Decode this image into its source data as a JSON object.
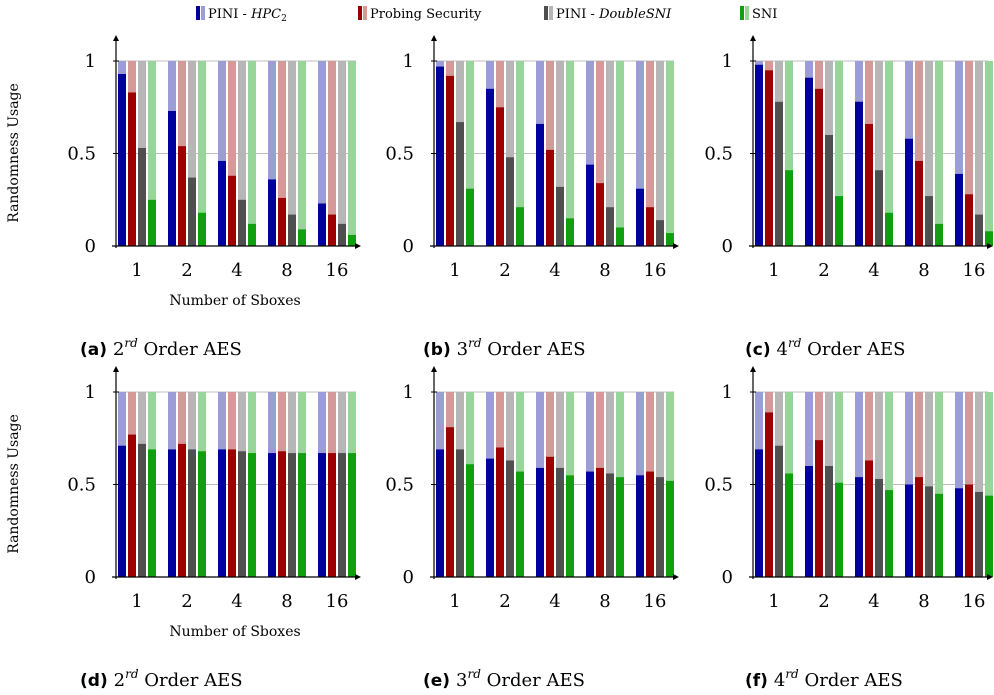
{
  "legend": {
    "items": [
      {
        "label_prefix": "PINI - ",
        "label_italic": "HPC",
        "label_sub": "2",
        "color_dark": "#00009f",
        "color_light": "#9c9cd6"
      },
      {
        "label_prefix": "Probing Security",
        "label_italic": "",
        "label_sub": "",
        "color_dark": "#9c0000",
        "color_light": "#d49a9a"
      },
      {
        "label_prefix": "PINI - ",
        "label_italic": "DoubleSNI",
        "label_sub": "",
        "color_dark": "#4f4f4f",
        "color_light": "#b6b6b6"
      },
      {
        "label_prefix": "SNI",
        "label_italic": "",
        "label_sub": "",
        "color_dark": "#0f9f0f",
        "color_light": "#98d598"
      }
    ]
  },
  "chart_data": [
    {
      "type": "bar",
      "caption": {
        "letter": "(a)",
        "order": "2",
        "sup": "rd",
        "text": "Order AES"
      },
      "ylabel": "Randomness Usage",
      "xlabel": "Number of Sboxes",
      "categories": [
        "1",
        "2",
        "4",
        "8",
        "16"
      ],
      "yticks": [
        "0",
        "0.5",
        "1"
      ],
      "ylim": [
        0,
        1
      ],
      "series": [
        {
          "values": [
            0.93,
            0.73,
            0.46,
            0.36,
            0.23
          ]
        },
        {
          "values": [
            0.83,
            0.54,
            0.38,
            0.26,
            0.17
          ]
        },
        {
          "values": [
            0.53,
            0.37,
            0.25,
            0.17,
            0.12
          ]
        },
        {
          "values": [
            0.25,
            0.18,
            0.12,
            0.09,
            0.06
          ]
        }
      ]
    },
    {
      "type": "bar",
      "caption": {
        "letter": "(b)",
        "order": "3",
        "sup": "rd",
        "text": "Order AES"
      },
      "ylabel": "",
      "xlabel": "",
      "categories": [
        "1",
        "2",
        "4",
        "8",
        "16"
      ],
      "yticks": [
        "0",
        "0.5",
        "1"
      ],
      "ylim": [
        0,
        1
      ],
      "series": [
        {
          "values": [
            0.97,
            0.85,
            0.66,
            0.44,
            0.31
          ]
        },
        {
          "values": [
            0.92,
            0.75,
            0.52,
            0.34,
            0.21
          ]
        },
        {
          "values": [
            0.67,
            0.48,
            0.32,
            0.21,
            0.14
          ]
        },
        {
          "values": [
            0.31,
            0.21,
            0.15,
            0.1,
            0.07
          ]
        }
      ]
    },
    {
      "type": "bar",
      "caption": {
        "letter": "(c)",
        "order": "4",
        "sup": "rd",
        "text": "Order AES"
      },
      "ylabel": "",
      "xlabel": "",
      "categories": [
        "1",
        "2",
        "4",
        "8",
        "16"
      ],
      "yticks": [
        "0",
        "0.5",
        "1"
      ],
      "ylim": [
        0,
        1
      ],
      "series": [
        {
          "values": [
            0.98,
            0.91,
            0.78,
            0.58,
            0.39
          ]
        },
        {
          "values": [
            0.95,
            0.85,
            0.66,
            0.46,
            0.28
          ]
        },
        {
          "values": [
            0.78,
            0.6,
            0.41,
            0.27,
            0.17
          ]
        },
        {
          "values": [
            0.41,
            0.27,
            0.18,
            0.12,
            0.08
          ]
        }
      ]
    },
    {
      "type": "bar",
      "caption": {
        "letter": "(d)",
        "order": "2",
        "sup": "rd",
        "text": "Order AES"
      },
      "ylabel": "Randomness Usage",
      "xlabel": "Number of Sboxes",
      "categories": [
        "1",
        "2",
        "4",
        "8",
        "16"
      ],
      "yticks": [
        "0",
        "0.5",
        "1"
      ],
      "ylim": [
        0,
        1
      ],
      "series": [
        {
          "values": [
            0.71,
            0.69,
            0.69,
            0.67,
            0.67
          ]
        },
        {
          "values": [
            0.77,
            0.72,
            0.69,
            0.68,
            0.67
          ]
        },
        {
          "values": [
            0.72,
            0.69,
            0.68,
            0.67,
            0.67
          ]
        },
        {
          "values": [
            0.69,
            0.68,
            0.67,
            0.67,
            0.67
          ]
        }
      ]
    },
    {
      "type": "bar",
      "caption": {
        "letter": "(e)",
        "order": "3",
        "sup": "rd",
        "text": "Order AES"
      },
      "ylabel": "",
      "xlabel": "",
      "categories": [
        "1",
        "2",
        "4",
        "8",
        "16"
      ],
      "yticks": [
        "0",
        "0.5",
        "1"
      ],
      "ylim": [
        0,
        1
      ],
      "series": [
        {
          "values": [
            0.69,
            0.64,
            0.59,
            0.57,
            0.55
          ]
        },
        {
          "values": [
            0.81,
            0.7,
            0.65,
            0.59,
            0.57
          ]
        },
        {
          "values": [
            0.69,
            0.63,
            0.59,
            0.56,
            0.54
          ]
        },
        {
          "values": [
            0.61,
            0.57,
            0.55,
            0.54,
            0.52
          ]
        }
      ]
    },
    {
      "type": "bar",
      "caption": {
        "letter": "(f)",
        "order": "4",
        "sup": "rd",
        "text": "Order AES"
      },
      "ylabel": "",
      "xlabel": "",
      "categories": [
        "1",
        "2",
        "4",
        "8",
        "16"
      ],
      "yticks": [
        "0",
        "0.5",
        "1"
      ],
      "ylim": [
        0,
        1
      ],
      "series": [
        {
          "values": [
            0.69,
            0.6,
            0.54,
            0.5,
            0.48
          ]
        },
        {
          "values": [
            0.89,
            0.74,
            0.63,
            0.54,
            0.5
          ]
        },
        {
          "values": [
            0.71,
            0.6,
            0.53,
            0.49,
            0.46
          ]
        },
        {
          "values": [
            0.56,
            0.51,
            0.47,
            0.45,
            0.44
          ]
        }
      ]
    }
  ]
}
